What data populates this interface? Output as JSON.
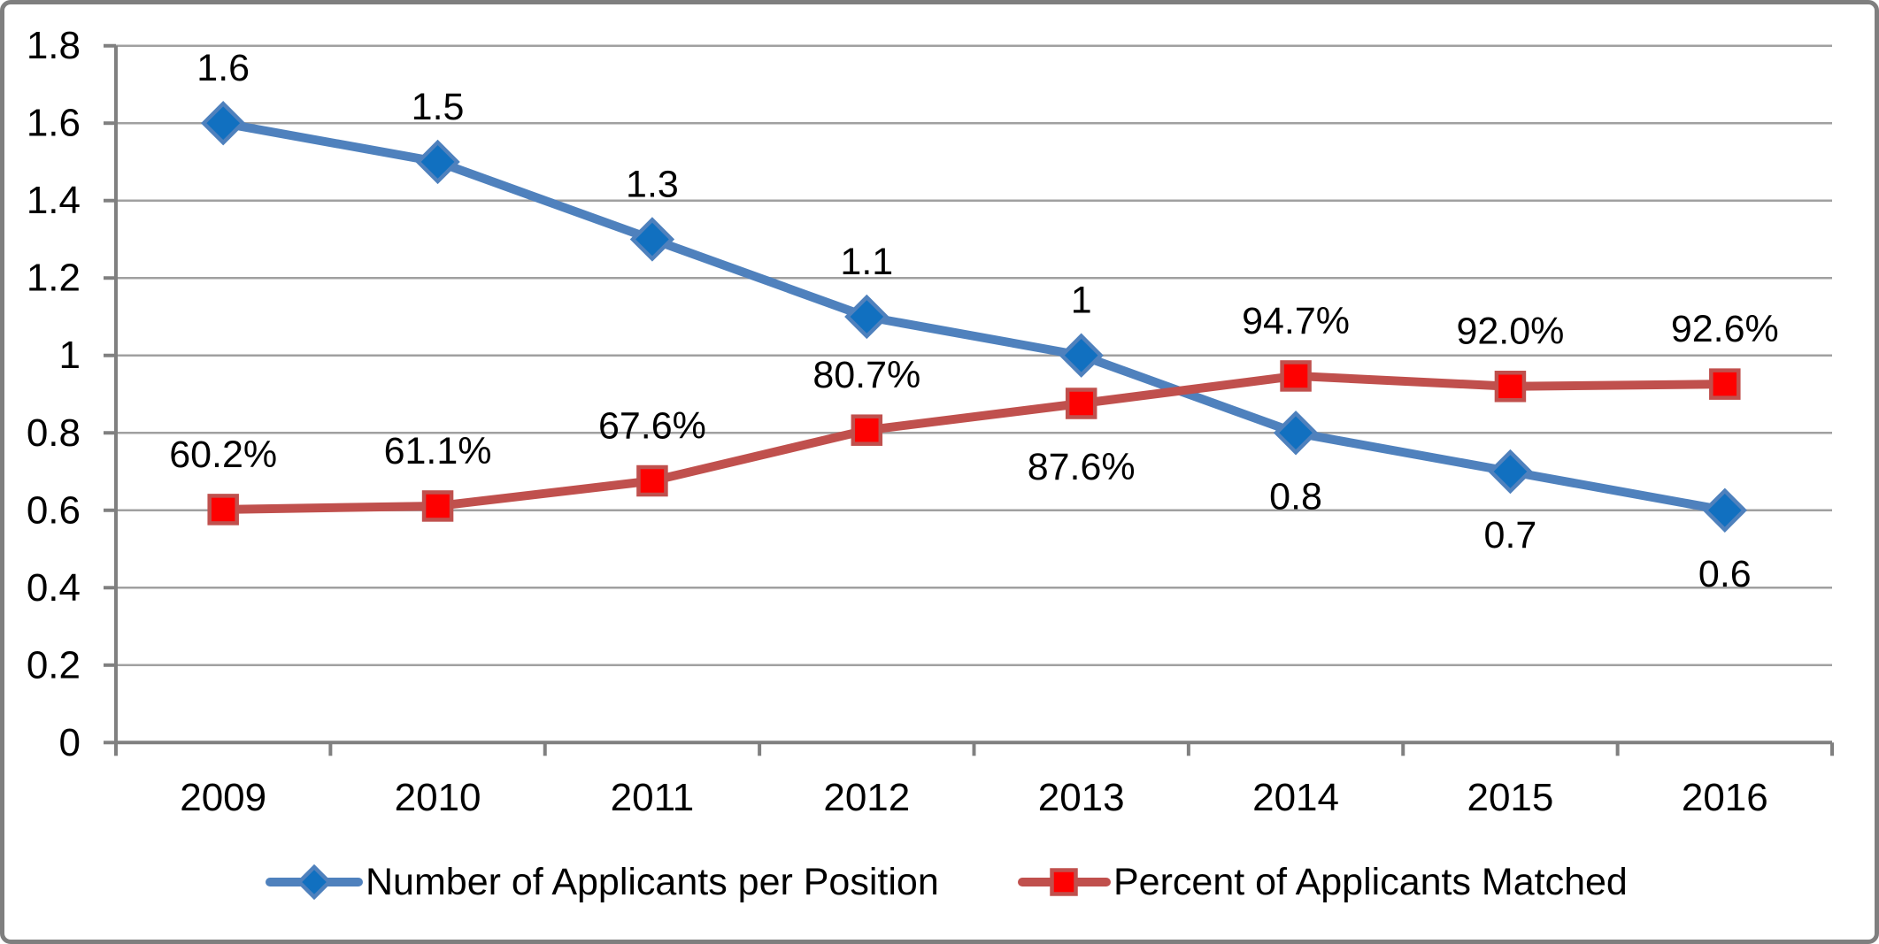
{
  "figure": {
    "background_color": "#FFFFFF",
    "border_color": "#7F7F7F"
  },
  "colors": {
    "blue_line": "#4F81BD",
    "blue_marker_fill": "#1170C0",
    "red_line": "#C0504D",
    "red_marker_fill": "#FE0000",
    "gridline": "#A0A0A0",
    "axis": "#808080",
    "label_text": "#000000"
  },
  "chart_data": {
    "type": "line",
    "title": "",
    "xlabel": "",
    "ylabel": "",
    "grid": true,
    "legend_position": "bottom",
    "categories": [
      "2009",
      "2010",
      "2011",
      "2012",
      "2013",
      "2014",
      "2015",
      "2016"
    ],
    "y_axis": {
      "min": 0,
      "max": 1.8,
      "step": 0.2,
      "tick_labels": [
        "0",
        "0.2",
        "0.4",
        "0.6",
        "0.8",
        "1",
        "1.2",
        "1.4",
        "1.6",
        "1.8"
      ]
    },
    "series": [
      {
        "name": "Number of Applicants per Position",
        "marker": "diamond",
        "line_color": "#4F81BD",
        "marker_fill": "#1170C0",
        "marker_stroke": "#4F81BD",
        "values": [
          1.6,
          1.5,
          1.3,
          1.1,
          1.0,
          0.8,
          0.7,
          0.6
        ],
        "point_labels": [
          "1.6",
          "1.5",
          "1.3",
          "1.1",
          "1",
          "0.8",
          "0.7",
          "0.6"
        ],
        "label_side": [
          "above",
          "above",
          "above",
          "above",
          "above",
          "below",
          "below",
          "below"
        ]
      },
      {
        "name": "Percent of Applicants Matched",
        "marker": "square",
        "line_color": "#C0504D",
        "marker_fill": "#FE0000",
        "marker_stroke": "#C0504D",
        "values": [
          0.602,
          0.611,
          0.676,
          0.807,
          0.876,
          0.947,
          0.92,
          0.926
        ],
        "point_labels": [
          "60.2%",
          "61.1%",
          "67.6%",
          "80.7%",
          "87.6%",
          "94.7%",
          "92.0%",
          "92.6%"
        ],
        "label_side": [
          "above",
          "above",
          "above",
          "above",
          "below",
          "above",
          "above",
          "above"
        ]
      }
    ]
  }
}
